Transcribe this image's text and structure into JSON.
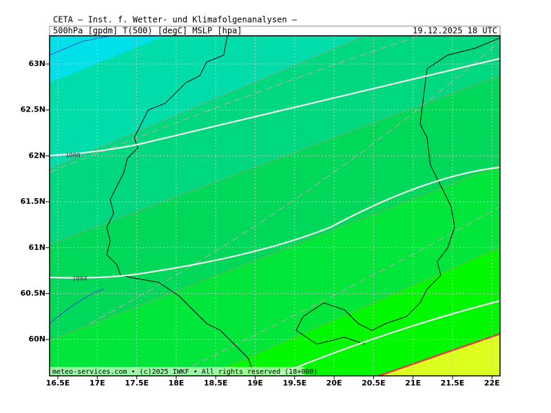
{
  "header": {
    "title": "CETA — Inst. f. Wetter- und Klimafolgenanalysen —",
    "product": "500hPa [gpdm] T(500) [degC] MSLP [hpa]",
    "valid_time": "19.12.2025 18 UTC"
  },
  "map": {
    "lat_labels": [
      "63N",
      "62.5N",
      "62N",
      "61.5N",
      "61N",
      "60.5N",
      "60N"
    ],
    "lon_labels": [
      "16.5E",
      "17E",
      "17.5E",
      "18E",
      "18.5E",
      "19E",
      "19.5E",
      "20E",
      "20.5E",
      "21E",
      "21.5E",
      "22E"
    ],
    "isobar_labels": [
      "1000",
      "1004"
    ],
    "footer": "meteo-services.com • (c)2025 IWKF • All rights reserved (18+000)"
  }
}
